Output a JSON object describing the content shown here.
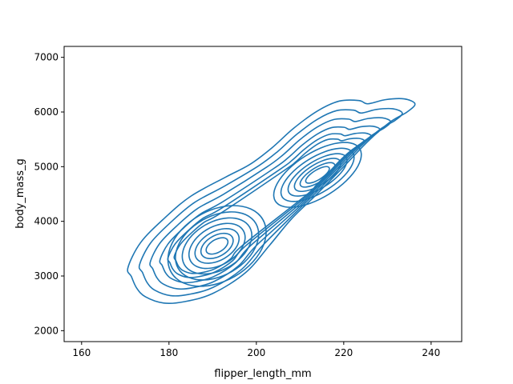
{
  "chart_data": {
    "type": "contour",
    "title": "",
    "xlabel": "flipper_length_mm",
    "ylabel": "body_mass_g",
    "xlim": [
      156,
      247
    ],
    "ylim": [
      1800,
      7200
    ],
    "xticks": [
      160,
      180,
      200,
      220,
      240
    ],
    "yticks": [
      2000,
      3000,
      4000,
      5000,
      6000,
      7000
    ],
    "grid": false,
    "legend": "none",
    "line_color": "#1f77b4",
    "density_peaks": [
      {
        "x": 191,
        "y": 3550
      },
      {
        "x": 214,
        "y": 4850
      }
    ],
    "outer_contour_points": [
      [
        170.6,
        3150
      ],
      [
        171.4,
        2990
      ],
      [
        172.6,
        2780
      ],
      [
        174.6,
        2620
      ],
      [
        178.8,
        2505
      ],
      [
        183.5,
        2530
      ],
      [
        190.0,
        2680
      ],
      [
        197.5,
        3060
      ],
      [
        203.0,
        3560
      ],
      [
        208.0,
        4040
      ],
      [
        213.5,
        4470
      ],
      [
        219.5,
        4960
      ],
      [
        225.5,
        5460
      ],
      [
        230.5,
        5810
      ],
      [
        234.5,
        6000
      ],
      [
        236.3,
        6150
      ],
      [
        233.8,
        6240
      ],
      [
        229.5,
        6225
      ],
      [
        225.5,
        6150
      ],
      [
        223.5,
        6210
      ],
      [
        219.0,
        6200
      ],
      [
        214.0,
        6020
      ],
      [
        208.5,
        5700
      ],
      [
        203.5,
        5340
      ],
      [
        198.5,
        5040
      ],
      [
        193.0,
        4810
      ],
      [
        185.0,
        4460
      ],
      [
        179.0,
        4060
      ],
      [
        173.5,
        3610
      ]
    ]
  }
}
